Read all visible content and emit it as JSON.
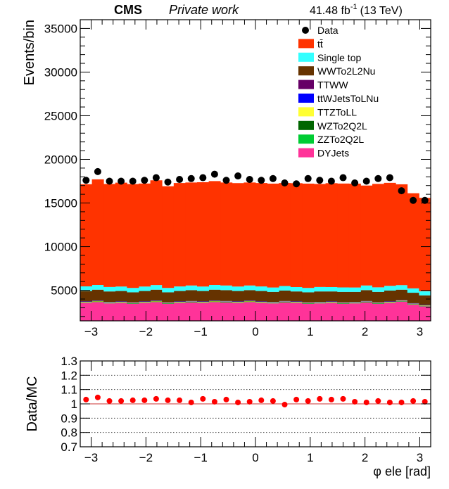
{
  "header": {
    "experiment": "CMS",
    "subtitle": "Private work",
    "lumi_value": "41.48 fb",
    "lumi_exp": "-1",
    "lumi_energy": "(13 TeV)"
  },
  "chart_data": [
    {
      "type": "area",
      "stacked": true,
      "ylabel": "Events/bin",
      "xlim": [
        -3.2,
        3.2
      ],
      "ylim": [
        1500,
        36000
      ],
      "yticks": [
        5000,
        10000,
        15000,
        20000,
        25000,
        30000,
        35000
      ],
      "xticks": [
        -3,
        -2,
        -1,
        0,
        1,
        2,
        3
      ],
      "grid": false,
      "legend_position": "top-right",
      "bin_edges": [
        -3.2,
        -2.9867,
        -2.7733,
        -2.56,
        -2.3467,
        -2.1333,
        -1.92,
        -1.7067,
        -1.4933,
        -1.28,
        -1.0667,
        -0.8533,
        -0.64,
        -0.4267,
        -0.2133,
        0.0,
        0.2133,
        0.4267,
        0.64,
        0.8533,
        1.0667,
        1.28,
        1.4933,
        1.7067,
        1.92,
        2.1333,
        2.3467,
        2.56,
        2.7733,
        2.9867,
        3.2
      ],
      "series": [
        {
          "name": "DYJets",
          "color": "#ff3399",
          "values": [
            3550,
            3650,
            3500,
            3550,
            3450,
            3550,
            3650,
            3450,
            3550,
            3600,
            3550,
            3650,
            3600,
            3550,
            3650,
            3550,
            3500,
            3600,
            3550,
            3450,
            3500,
            3550,
            3450,
            3500,
            3600,
            3450,
            3550,
            3700,
            3350,
            3150
          ]
        },
        {
          "name": "ZZTo2Q2L",
          "color": "#00cc33",
          "values": [
            30,
            30,
            30,
            30,
            30,
            30,
            30,
            30,
            30,
            30,
            30,
            30,
            30,
            30,
            30,
            30,
            30,
            30,
            30,
            30,
            30,
            30,
            30,
            30,
            30,
            30,
            30,
            30,
            30,
            30
          ]
        },
        {
          "name": "WZTo2Q2L",
          "color": "#006600",
          "values": [
            40,
            40,
            40,
            40,
            40,
            40,
            40,
            40,
            40,
            40,
            40,
            40,
            40,
            40,
            40,
            40,
            40,
            40,
            40,
            40,
            40,
            40,
            40,
            40,
            40,
            40,
            40,
            40,
            40,
            40
          ]
        },
        {
          "name": "TTZToLL",
          "color": "#ffff33",
          "values": [
            50,
            50,
            50,
            50,
            50,
            50,
            50,
            50,
            50,
            50,
            50,
            50,
            50,
            50,
            50,
            50,
            50,
            50,
            50,
            50,
            50,
            50,
            50,
            50,
            50,
            50,
            50,
            50,
            50,
            50
          ]
        },
        {
          "name": "ttWJetsToLNu",
          "color": "#0000ff",
          "values": [
            40,
            40,
            40,
            40,
            40,
            40,
            40,
            40,
            40,
            40,
            40,
            40,
            40,
            40,
            40,
            40,
            40,
            40,
            40,
            40,
            40,
            40,
            40,
            40,
            40,
            40,
            40,
            40,
            40,
            40
          ]
        },
        {
          "name": "TTWW",
          "color": "#660066",
          "values": [
            10,
            10,
            10,
            10,
            10,
            10,
            10,
            10,
            10,
            10,
            10,
            10,
            10,
            10,
            10,
            10,
            10,
            10,
            10,
            10,
            10,
            10,
            10,
            10,
            10,
            10,
            10,
            10,
            10,
            10
          ]
        },
        {
          "name": "WWTo2L2Nu",
          "color": "#663300",
          "values": [
            1200,
            1250,
            1200,
            1200,
            1150,
            1200,
            1250,
            1150,
            1200,
            1250,
            1200,
            1250,
            1250,
            1200,
            1200,
            1200,
            1150,
            1200,
            1150,
            1150,
            1200,
            1150,
            1200,
            1150,
            1250,
            1200,
            1250,
            1200,
            1200,
            1100
          ]
        },
        {
          "name": "Single top",
          "color": "#33ffff",
          "values": [
            530,
            540,
            510,
            510,
            500,
            510,
            530,
            500,
            520,
            530,
            510,
            540,
            530,
            510,
            530,
            520,
            500,
            520,
            500,
            500,
            510,
            500,
            510,
            500,
            530,
            520,
            540,
            520,
            500,
            470
          ]
        },
        {
          "name": "tt̄",
          "color": "#ff3300",
          "values": [
            11700,
            12100,
            11800,
            11900,
            11900,
            11800,
            12000,
            11650,
            11850,
            11800,
            11950,
            11900,
            11800,
            11850,
            11800,
            11850,
            11900,
            11800,
            11900,
            11950,
            11800,
            11900,
            11900,
            11900,
            11450,
            11850,
            11800,
            11550,
            10900,
            10700
          ]
        }
      ],
      "data": {
        "name": "Data",
        "color": "#000000",
        "values": [
          17600,
          18600,
          17500,
          17500,
          17500,
          17600,
          17900,
          17400,
          17700,
          17800,
          17900,
          18300,
          17600,
          18100,
          17700,
          17600,
          17800,
          17300,
          17200,
          17800,
          17600,
          17500,
          17900,
          17300,
          17500,
          17800,
          17900,
          16400,
          15300,
          15300
        ]
      }
    },
    {
      "type": "scatter",
      "ylabel": "Data/MC",
      "xlabel": "φ ele [rad]",
      "xlim": [
        -3.2,
        3.2
      ],
      "ylim": [
        0.7,
        1.3
      ],
      "yticks": [
        0.7,
        0.8,
        0.9,
        1,
        1.1,
        1.2,
        1.3
      ],
      "ytick_labels": [
        "0.7",
        "0.8",
        "0.9",
        "1",
        "1.1",
        "1.2",
        "1.3"
      ],
      "xticks": [
        -3,
        -2,
        -1,
        0,
        1,
        2,
        3
      ],
      "grid": true,
      "reference_line": 1.0,
      "color": "#ff0000",
      "x": [
        -3.0933,
        -2.88,
        -2.6667,
        -2.4533,
        -2.24,
        -2.0267,
        -1.8133,
        -1.6,
        -1.3867,
        -1.1733,
        -0.96,
        -0.7467,
        -0.5333,
        -0.32,
        -0.1067,
        0.1067,
        0.32,
        0.5333,
        0.7467,
        0.96,
        1.1733,
        1.3867,
        1.6,
        1.8133,
        2.0267,
        2.24,
        2.4533,
        2.6667,
        2.88,
        3.0933
      ],
      "values": [
        1.03,
        1.045,
        1.02,
        1.02,
        1.025,
        1.025,
        1.035,
        1.025,
        1.025,
        1.01,
        1.035,
        1.015,
        1.03,
        1.01,
        1.015,
        1.025,
        1.02,
        0.995,
        1.03,
        1.02,
        1.035,
        1.03,
        1.035,
        1.015,
        1.01,
        1.02,
        1.01,
        1.01,
        1.02,
        1.015
      ]
    }
  ]
}
